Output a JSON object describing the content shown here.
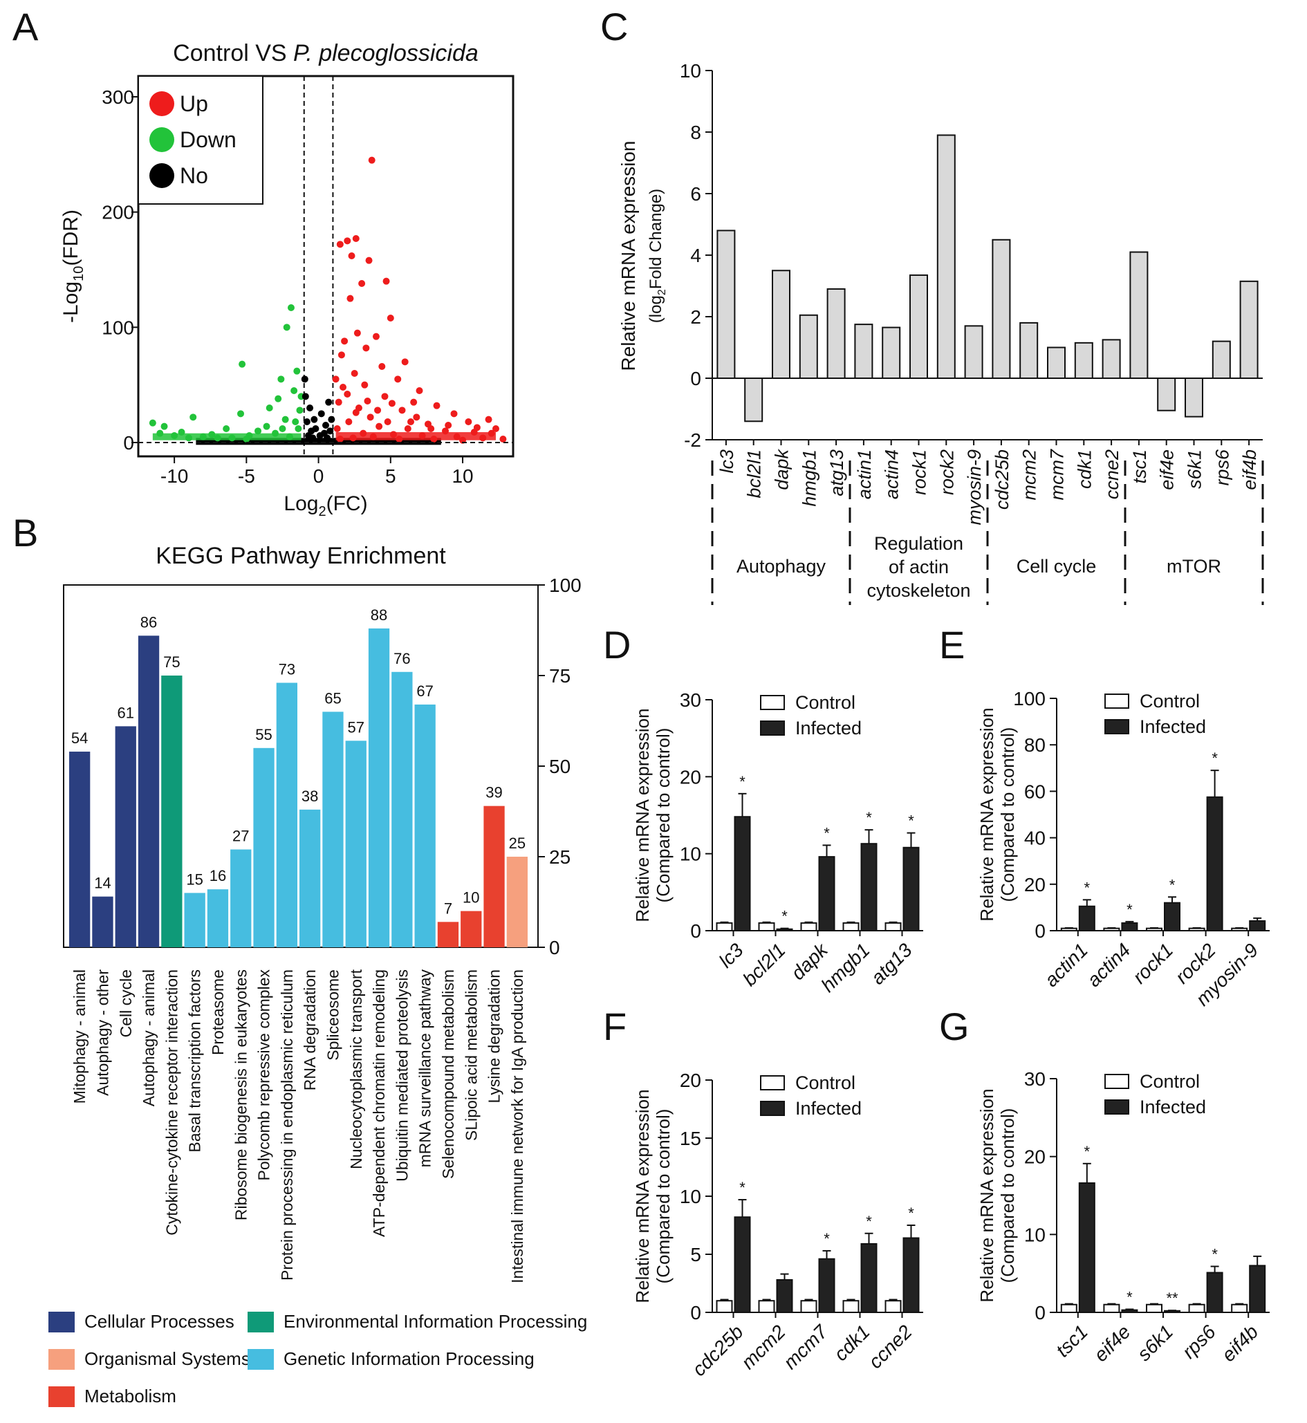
{
  "panels": {
    "A": "A",
    "B": "B",
    "C": "C",
    "D": "D",
    "E": "E",
    "F": "F",
    "G": "G"
  },
  "colors": {
    "up": "#ee1c1c",
    "down": "#22c33a",
    "no": "#000000",
    "cellular": "#2b3f80",
    "environmental": "#0f9a78",
    "genetic": "#46bde0",
    "metabolism": "#e8412f",
    "organismal": "#f6a07e",
    "graybar": "#d9d9d9",
    "darkbar": "#222222"
  },
  "chart_data": [
    {
      "id": "A",
      "type": "scatter",
      "title_main": "Control VS ",
      "title_italic": "P. plecoglossicida",
      "xlabel_main": "Log",
      "xlabel_sub": "2",
      "xlabel_tail": "(FC)",
      "ylabel_main": "-Log",
      "ylabel_sub": "10",
      "ylabel_tail": "(FDR)",
      "xlim": [
        -12.5,
        13.5
      ],
      "ylim": [
        -12,
        318
      ],
      "xticks": [
        -10,
        -5,
        0,
        5,
        10
      ],
      "yticks": [
        0,
        100,
        200,
        300
      ],
      "vlines": [
        -1,
        1
      ],
      "hline": 0,
      "legend": [
        "Up",
        "Down",
        "No"
      ],
      "series": [
        {
          "name": "Up",
          "points": [
            [
              3.7,
              245
            ],
            [
              2,
              175
            ],
            [
              2.6,
              177
            ],
            [
              1.5,
              172
            ],
            [
              2.3,
              162
            ],
            [
              3.5,
              158
            ],
            [
              4.7,
              140
            ],
            [
              3,
              138
            ],
            [
              2.2,
              125
            ],
            [
              5,
              108
            ],
            [
              4,
              92
            ],
            [
              2.7,
              95
            ],
            [
              1.8,
              88
            ],
            [
              3.3,
              82
            ],
            [
              6,
              70
            ],
            [
              1.6,
              76
            ],
            [
              4.4,
              66
            ],
            [
              2.5,
              60
            ],
            [
              5.5,
              55
            ],
            [
              3.2,
              50
            ],
            [
              7,
              45
            ],
            [
              2,
              42
            ],
            [
              4.6,
              40
            ],
            [
              6.6,
              35
            ],
            [
              8.2,
              32
            ],
            [
              2.8,
              30
            ],
            [
              5.8,
              28
            ],
            [
              9.4,
              25
            ],
            [
              11.8,
              20
            ],
            [
              3.6,
              22
            ],
            [
              10.4,
              18
            ],
            [
              7.6,
              16
            ],
            [
              12.3,
              12
            ],
            [
              1.4,
              35
            ],
            [
              1.2,
              55
            ],
            [
              2.1,
              18
            ],
            [
              4.2,
              14
            ],
            [
              6.2,
              12
            ],
            [
              8.8,
              10
            ],
            [
              10.8,
              9
            ],
            [
              1.3,
              12
            ],
            [
              3.1,
              8
            ],
            [
              5.2,
              7
            ],
            [
              7.2,
              6
            ],
            [
              9.6,
              5
            ],
            [
              11.4,
              4
            ],
            [
              12.8,
              3
            ],
            [
              1.5,
              3
            ],
            [
              2.4,
              4
            ],
            [
              3.8,
              5
            ],
            [
              5.6,
              3
            ],
            [
              8,
              3
            ],
            [
              10,
              2
            ],
            [
              4.8,
              18
            ],
            [
              6.8,
              22
            ],
            [
              2.6,
              26
            ],
            [
              1.7,
              48
            ],
            [
              3.4,
              36
            ],
            [
              4.1,
              28
            ],
            [
              5.1,
              34
            ],
            [
              6.4,
              18
            ],
            [
              7.8,
              12
            ],
            [
              9,
              15
            ],
            [
              11,
              13
            ],
            [
              12,
              8
            ]
          ]
        },
        {
          "name": "Down",
          "points": [
            [
              -1.9,
              117
            ],
            [
              -2.2,
              100
            ],
            [
              -5.3,
              68
            ],
            [
              -1.5,
              62
            ],
            [
              -2.6,
              55
            ],
            [
              -1.7,
              45
            ],
            [
              -2.8,
              38
            ],
            [
              -3.4,
              30
            ],
            [
              -5.4,
              25
            ],
            [
              -8.7,
              22
            ],
            [
              -11.5,
              17
            ],
            [
              -10.7,
              14
            ],
            [
              -6.4,
              12
            ],
            [
              -4.2,
              10
            ],
            [
              -2.3,
              20
            ],
            [
              -1.3,
              28
            ],
            [
              -9.5,
              9
            ],
            [
              -7.4,
              7
            ],
            [
              -3,
              8
            ],
            [
              -2,
              5
            ],
            [
              -1.4,
              12
            ],
            [
              -10,
              6
            ],
            [
              -11,
              8
            ],
            [
              -8,
              5
            ],
            [
              -6,
              4
            ],
            [
              -4.8,
              6
            ],
            [
              -3.6,
              14
            ],
            [
              -2.5,
              12
            ],
            [
              -1.6,
              18
            ],
            [
              -1.2,
              40
            ],
            [
              -5,
              3
            ],
            [
              -7,
              4
            ],
            [
              -9,
              4
            ]
          ]
        },
        {
          "name": "No",
          "points": [
            [
              -0.9,
              40
            ],
            [
              -0.6,
              30
            ],
            [
              -0.3,
              20
            ],
            [
              0.2,
              25
            ],
            [
              0.7,
              35
            ],
            [
              -0.8,
              18
            ],
            [
              0.5,
              15
            ],
            [
              -0.5,
              10
            ],
            [
              0.8,
              10
            ],
            [
              0.1,
              6
            ],
            [
              -0.2,
              12
            ],
            [
              0.4,
              8
            ],
            [
              -0.7,
              6
            ],
            [
              0.9,
              20
            ],
            [
              -0.95,
              55
            ],
            [
              0.6,
              4
            ],
            [
              -0.4,
              4
            ]
          ]
        }
      ]
    },
    {
      "id": "B",
      "type": "bar",
      "title": "KEGG Pathway Enrichment",
      "ylim": [
        0,
        100
      ],
      "yticks": [
        0,
        25,
        50,
        75,
        100
      ],
      "categories": [
        "Mitophagy - animal",
        "Autophagy - other",
        "Cell cycle",
        "Autophagy - animal",
        "Cytokine-cytokine receptor interaction",
        "Basal transcription factors",
        "Proteasome",
        "Ribosome biogenesis in eukaryotes",
        "Polycomb repressive complex",
        "Protein processing in endoplasmic reticulum",
        "RNA degradation",
        "Spliceosome",
        "Nucleocytoplasmic transport",
        "ATP-dependent chromatin remodeling",
        "Ubiquitin mediated proteolysis",
        "mRNA surveillance pathway",
        "Selenocompound metabolism",
        "SLipoic acid metabolism",
        "Lysine degradation",
        "Intestinal immune network for IgA production"
      ],
      "values": [
        54,
        14,
        61,
        86,
        75,
        15,
        16,
        27,
        55,
        73,
        38,
        65,
        57,
        88,
        76,
        67,
        7,
        10,
        39,
        25
      ],
      "value_labels": [
        "54",
        "14",
        "61",
        "86",
        "75",
        "15",
        "16",
        "27",
        "55",
        "73",
        "38",
        "65",
        "57",
        "88",
        "76",
        "67",
        "7",
        "10",
        "39",
        "25"
      ],
      "groups": [
        "cellular",
        "cellular",
        "cellular",
        "cellular",
        "environmental",
        "genetic",
        "genetic",
        "genetic",
        "genetic",
        "genetic",
        "genetic",
        "genetic",
        "genetic",
        "genetic",
        "genetic",
        "genetic",
        "metabolism",
        "metabolism",
        "metabolism",
        "organismal"
      ],
      "legend": [
        {
          "key": "cellular",
          "label": "Cellular Processes"
        },
        {
          "key": "environmental",
          "label": "Environmental Information Processing"
        },
        {
          "key": "organismal",
          "label": "Organismal Systems"
        },
        {
          "key": "genetic",
          "label": "Genetic Information Processing"
        },
        {
          "key": "metabolism",
          "label": "Metabolism"
        }
      ]
    },
    {
      "id": "C",
      "type": "bar",
      "ylabel_line1": "Relative mRNA expression",
      "ylabel_line2_open": "(log",
      "ylabel_line2_sub": "2",
      "ylabel_line2_tail": "Fold Change)",
      "ylim": [
        -2,
        10
      ],
      "yticks": [
        -2,
        0,
        2,
        4,
        6,
        8,
        10
      ],
      "categories": [
        "lc3",
        "bcl2l1",
        "dapk",
        "hmgb1",
        "atg13",
        "actin1",
        "actin4",
        "rock1",
        "rock2",
        "myosin-9",
        "cdc25b",
        "mcm2",
        "mcm7",
        "cdk1",
        "ccne2",
        "tsc1",
        "eif4e",
        "s6k1",
        "rps6",
        "eif4b"
      ],
      "values": [
        4.8,
        -1.4,
        3.5,
        2.05,
        2.9,
        1.75,
        1.65,
        3.35,
        7.9,
        1.7,
        4.5,
        1.8,
        1.0,
        1.15,
        1.25,
        4.1,
        -1.05,
        -1.25,
        1.2,
        3.15
      ],
      "groups": [
        {
          "lines": [
            "Autophagy"
          ],
          "span": [
            0,
            4
          ]
        },
        {
          "lines": [
            "Regulation",
            "of actin",
            "cytoskeleton"
          ],
          "span": [
            5,
            9
          ]
        },
        {
          "lines": [
            "Cell cycle"
          ],
          "span": [
            10,
            14
          ]
        },
        {
          "lines": [
            "mTOR"
          ],
          "span": [
            15,
            19
          ]
        }
      ]
    },
    {
      "id": "D",
      "type": "bar",
      "ylabel_line1": "Relative mRNA expression",
      "ylabel_line2": "(Compared to control)",
      "ylim": [
        0,
        30
      ],
      "yticks": [
        0,
        10,
        20,
        30
      ],
      "categories": [
        "lc3",
        "bcl2l1",
        "dapk",
        "hmgb1",
        "atg13"
      ],
      "series": [
        {
          "name": "Control",
          "values": [
            1,
            1,
            1,
            1,
            1
          ],
          "errors": [
            0.1,
            0.1,
            0.1,
            0.1,
            0.1
          ]
        },
        {
          "name": "Infected",
          "values": [
            14.8,
            0.2,
            9.6,
            11.3,
            10.8
          ],
          "errors": [
            3,
            0.1,
            1.5,
            1.8,
            1.9
          ]
        }
      ],
      "sig": [
        "*",
        "*",
        "*",
        "*",
        "*"
      ]
    },
    {
      "id": "E",
      "type": "bar",
      "ylabel_line1": "Relative mRNA expression",
      "ylabel_line2": "(Compared to control)",
      "ylim": [
        0,
        100
      ],
      "yticks": [
        0,
        20,
        40,
        60,
        80,
        100
      ],
      "categories": [
        "actin1",
        "actin4",
        "rock1",
        "rock2",
        "myosin-9"
      ],
      "series": [
        {
          "name": "Control",
          "values": [
            1,
            1,
            1,
            1,
            1
          ],
          "errors": [
            0.2,
            0.2,
            0.2,
            0.2,
            0.2
          ]
        },
        {
          "name": "Infected",
          "values": [
            10.5,
            3.3,
            12,
            57.5,
            4.2
          ],
          "errors": [
            2.8,
            0.6,
            2.5,
            11.5,
            1.2
          ]
        }
      ],
      "sig": [
        "*",
        "*",
        "*",
        "*",
        ""
      ]
    },
    {
      "id": "F",
      "type": "bar",
      "ylabel_line1": "Relative mRNA expression",
      "ylabel_line2": "(Compared to control)",
      "ylim": [
        0,
        20
      ],
      "yticks": [
        0,
        5,
        10,
        15,
        20
      ],
      "categories": [
        "cdc25b",
        "mcm2",
        "mcm7",
        "cdk1",
        "ccne2"
      ],
      "series": [
        {
          "name": "Control",
          "values": [
            1,
            1,
            1,
            1,
            1
          ],
          "errors": [
            0.1,
            0.1,
            0.1,
            0.1,
            0.1
          ]
        },
        {
          "name": "Infected",
          "values": [
            8.2,
            2.8,
            4.6,
            5.9,
            6.4
          ],
          "errors": [
            1.5,
            0.5,
            0.7,
            0.9,
            1.1
          ]
        }
      ],
      "sig": [
        "*",
        "",
        "*",
        "*",
        "*"
      ]
    },
    {
      "id": "G",
      "type": "bar",
      "ylabel_line1": "Relative mRNA expression",
      "ylabel_line2": "(Compared to control)",
      "ylim": [
        0,
        30
      ],
      "yticks": [
        0,
        10,
        20,
        30
      ],
      "categories": [
        "tsc1",
        "eif4e",
        "s6k1",
        "rps6",
        "eif4b"
      ],
      "series": [
        {
          "name": "Control",
          "values": [
            1,
            1,
            1,
            1,
            1
          ],
          "errors": [
            0.1,
            0.1,
            0.1,
            0.1,
            0.1
          ]
        },
        {
          "name": "Infected",
          "values": [
            16.6,
            0.3,
            0.2,
            5.1,
            6
          ],
          "errors": [
            2.5,
            0.1,
            0.05,
            0.8,
            1.2
          ]
        }
      ],
      "sig": [
        "*",
        "*",
        "**",
        "*",
        ""
      ]
    }
  ]
}
